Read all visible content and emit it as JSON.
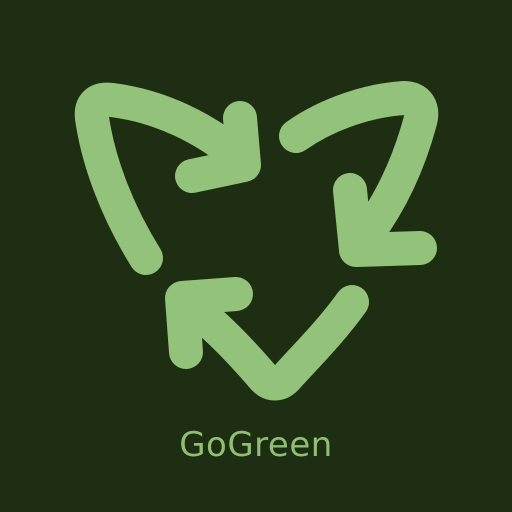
{
  "brand": {
    "name": "GoGreen"
  },
  "icons": {
    "logo": "recycle-heart-icon"
  },
  "colors": {
    "background": "#1d2e12",
    "accent": "#93c27b",
    "text": "#8fbf73"
  }
}
